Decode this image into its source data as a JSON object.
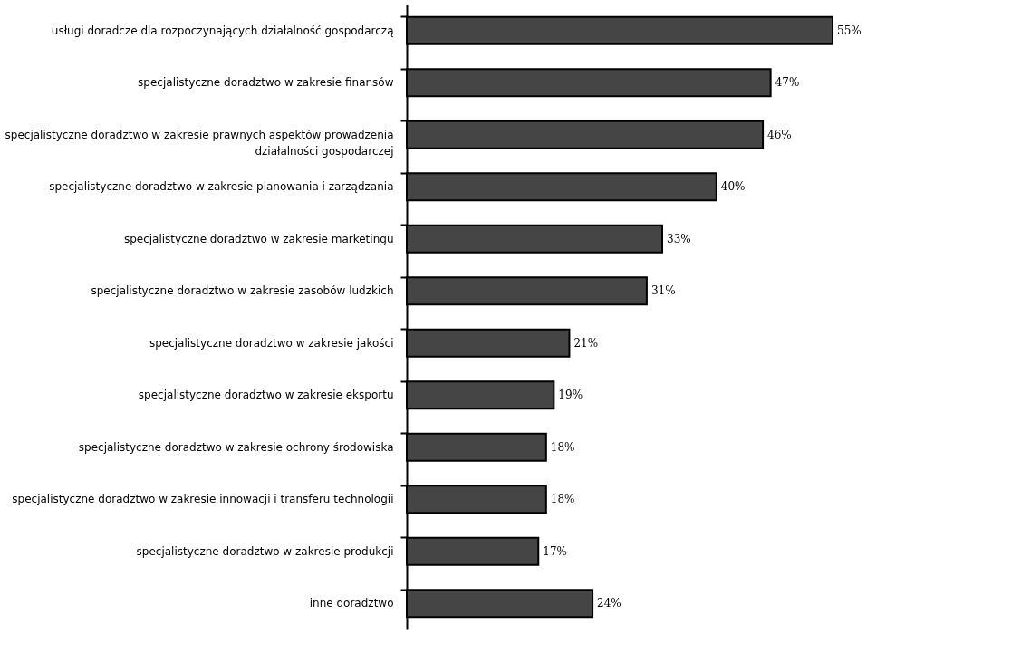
{
  "chart_data": {
    "type": "bar",
    "orientation": "horizontal",
    "categories": [
      "usługi doradcze dla rozpoczynających działalność gospodarczą",
      "specjalistyczne doradztwo w zakresie finansów",
      "specjalistyczne doradztwo w zakresie prawnych aspektów prowadzenia działalności gospodarczej",
      "specjalistyczne doradztwo w zakresie planowania i zarządzania",
      "specjalistyczne doradztwo w zakresie marketingu",
      "specjalistyczne doradztwo w zakresie zasobów ludzkich",
      "specjalistyczne doradztwo w zakresie jakości",
      "specjalistyczne doradztwo w zakresie eksportu",
      "specjalistyczne doradztwo w zakresie ochrony środowiska",
      "specjalistyczne doradztwo w zakresie innowacji i transferu technologii",
      "specjalistyczne doradztwo w zakresie produkcji",
      "inne doradztwo"
    ],
    "values": [
      55,
      47,
      46,
      40,
      33,
      31,
      21,
      19,
      18,
      18,
      17,
      24
    ],
    "value_labels": [
      "55%",
      "47%",
      "46%",
      "40%",
      "33%",
      "31%",
      "21%",
      "19%",
      "18%",
      "18%",
      "17%",
      "24%"
    ],
    "color": "#454545"
  }
}
